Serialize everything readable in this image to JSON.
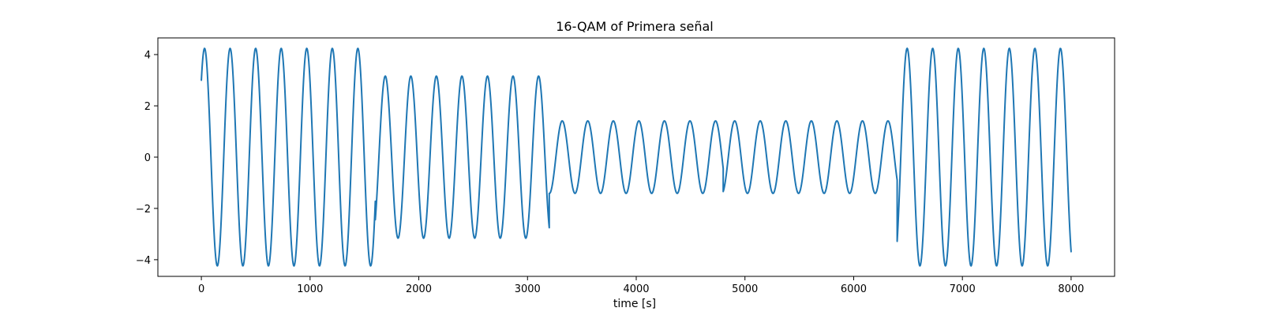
{
  "chart_data": {
    "type": "line",
    "title": "16-QAM of Primera señal",
    "xlabel": "time [s]",
    "ylabel": "",
    "xlim": [
      -400,
      8400
    ],
    "ylim": [
      -4.65,
      4.65
    ],
    "xticks": [
      0,
      1000,
      2000,
      3000,
      4000,
      5000,
      6000,
      7000,
      8000
    ],
    "yticks": [
      -4,
      -2,
      0,
      2,
      4
    ],
    "grid": false,
    "line_color": "#1f77b4",
    "samples_per_second": 1,
    "carrier_period": 235,
    "symbol_duration": 1600,
    "symbols": [
      {
        "start": 0,
        "end": 1600,
        "i": 3,
        "q": 3
      },
      {
        "start": 1600,
        "end": 3200,
        "i": 1,
        "q": 3
      },
      {
        "start": 3200,
        "end": 4800,
        "i": 1,
        "q": 1
      },
      {
        "start": 4800,
        "end": 6400,
        "i": 1,
        "q": -1
      },
      {
        "start": 6400,
        "end": 8000,
        "i": -3,
        "q": -3
      }
    ],
    "series": [
      {
        "values_description": "y(t) = I*cos(2*pi*t/235) + Q*sin(2*pi*t/235)"
      }
    ]
  }
}
